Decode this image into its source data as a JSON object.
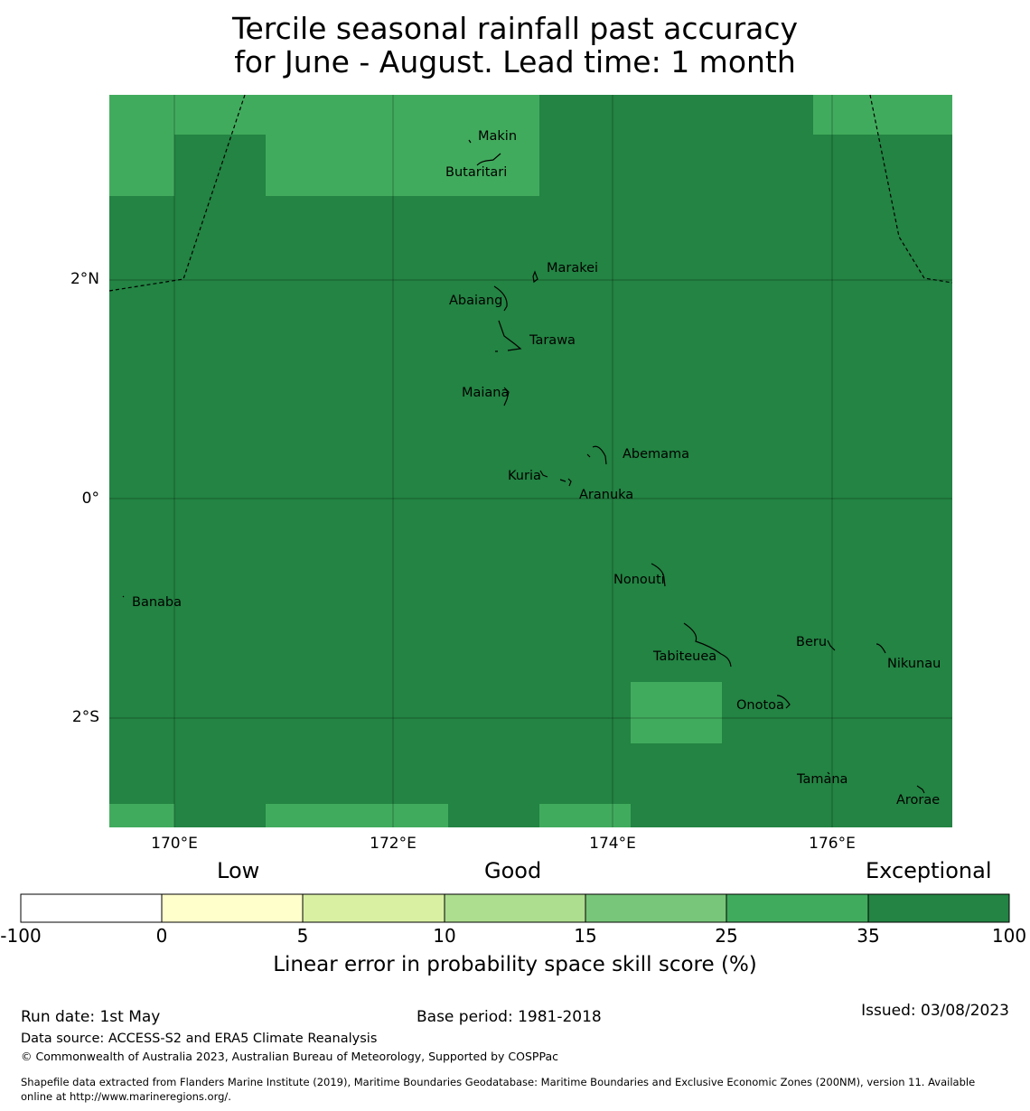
{
  "title": {
    "line1": "Tercile seasonal rainfall past accuracy",
    "line2": "for June - August. Lead time: 1 month"
  },
  "map": {
    "lat_labels": [
      "2°N",
      "0°",
      "2°S"
    ],
    "lon_labels": [
      "170°E",
      "172°E",
      "174°E",
      "176°E"
    ],
    "skill_colors": {
      "25_35": "#41ab5d",
      "35_100": "#238443"
    },
    "places": [
      "Makin",
      "Butaritari",
      "Marakei",
      "Abaiang",
      "Tarawa",
      "Maiana",
      "Abemama",
      "Kuria",
      "Aranuka",
      "Banaba",
      "Nonouti",
      "Beru",
      "Tabiteuea",
      "Nikunau",
      "Onotoa",
      "Tamana",
      "Arorae"
    ]
  },
  "colorbar": {
    "categories": [
      "Low",
      "Good",
      "Exceptional"
    ],
    "ticks": [
      "-100",
      "0",
      "5",
      "10",
      "15",
      "25",
      "35",
      "100"
    ],
    "colors": [
      "#ffffff",
      "#ffffcc",
      "#d9f0a3",
      "#addd8e",
      "#78c679",
      "#41ab5d",
      "#238443"
    ],
    "title": "Linear error in probability space skill score (%)"
  },
  "footer": {
    "run_date": "Run date: 1st May",
    "base_period": "Base period: 1981-2018",
    "issued": "Issued: 03/08/2023",
    "data_source": "Data source: ACCESS-S2 and ERA5 Climate Reanalysis",
    "copyright": "© Commonwealth of Australia 2023, Australian Bureau of Meteorology, Supported by COSPPac",
    "shapefile_line1": "Shapefile data extracted from Flanders Marine Institute (2019), Maritime Boundaries Geodatabase: Maritime Boundaries and Exclusive Economic Zones (200NM), version 11. Available",
    "shapefile_line2": "online at http://www.marineregions.org/."
  }
}
